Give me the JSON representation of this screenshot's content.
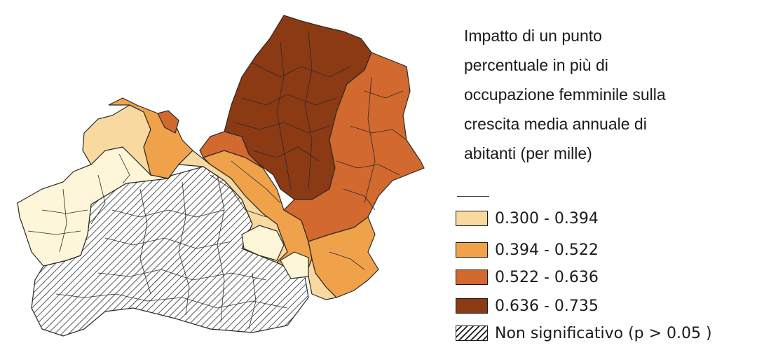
{
  "title": {
    "lines": [
      "Impatto di un punto",
      "percentuale in più di",
      "occupazione femminile sulla",
      "crescita media annuale di",
      "abitanti (per mille)"
    ]
  },
  "legend": {
    "items": [
      {
        "label": "0.300 - 0.394",
        "color": "#f8d9a0"
      },
      {
        "label": "0.394 - 0.522",
        "color": "#f0a24a"
      },
      {
        "label": "0.522 - 0.636",
        "color": "#d2692e"
      },
      {
        "label": "0.636 - 0.735",
        "color": "#8b3a14"
      },
      {
        "label": "Non significativo (p > 0.05 )",
        "color": "hatch"
      }
    ]
  },
  "map": {
    "extra_color": "#fdf6d8",
    "stroke_color": "#2a2a2a"
  }
}
